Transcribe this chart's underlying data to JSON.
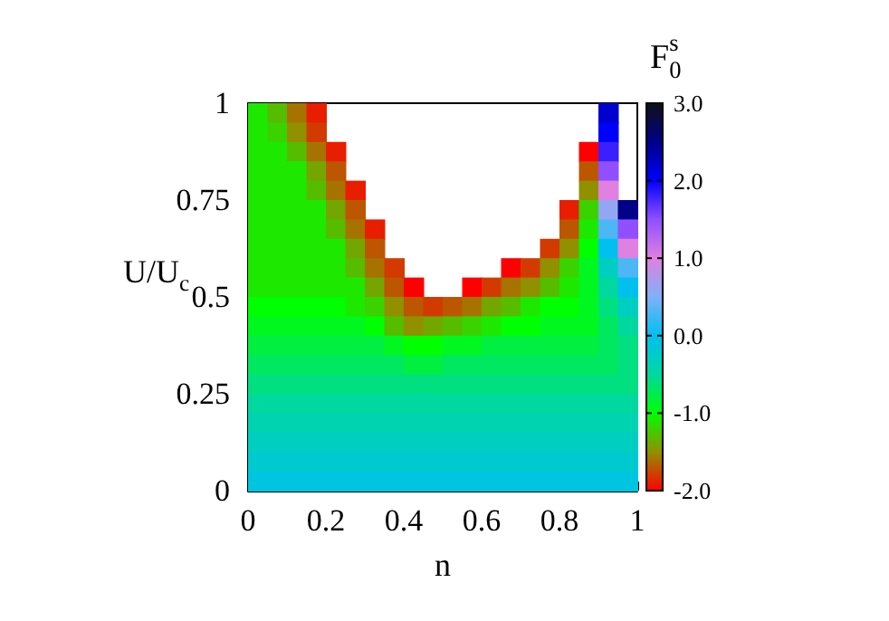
{
  "chart_data": {
    "type": "heatmap",
    "xlabel": "n",
    "ylabel": "U/U$_{c}$",
    "clabel": "F$^{s}$$_{0}$",
    "xlim": [
      0,
      1
    ],
    "ylim": [
      0,
      1
    ],
    "xticks": [
      0,
      0.2,
      0.4,
      0.6,
      0.8,
      1
    ],
    "yticks": [
      0,
      0.25,
      0.5,
      0.75,
      1
    ],
    "clim": [
      -2,
      3
    ],
    "cticks": [
      {
        "value": 3,
        "label": "3.0"
      },
      {
        "value": 2,
        "label": "2.0"
      },
      {
        "value": 1,
        "label": "1.0"
      },
      {
        "value": 0,
        "label": "0.0"
      },
      {
        "value": -1,
        "label": "-1.0"
      },
      {
        "value": -2,
        "label": "-2.0"
      }
    ],
    "cells": [
      [
        -1.1,
        -1.3,
        -1.6,
        -1.9,
        null,
        null,
        null,
        null,
        null,
        null,
        null,
        null,
        null,
        null,
        null,
        null,
        null,
        null,
        2.2,
        null
      ],
      [
        -1.1,
        -1.2,
        -1.5,
        -1.8,
        null,
        null,
        null,
        null,
        null,
        null,
        null,
        null,
        null,
        null,
        null,
        null,
        null,
        null,
        2.0,
        null
      ],
      [
        -1.1,
        -1.1,
        -1.3,
        -1.6,
        -1.9,
        null,
        null,
        null,
        null,
        null,
        null,
        null,
        null,
        null,
        null,
        null,
        null,
        -2.0,
        1.8,
        null
      ],
      [
        -1.1,
        -1.1,
        -1.1,
        -1.4,
        -1.7,
        null,
        null,
        null,
        null,
        null,
        null,
        null,
        null,
        null,
        null,
        null,
        null,
        -1.7,
        1.5,
        null
      ],
      [
        -1.1,
        -1.1,
        -1.1,
        -1.3,
        -1.6,
        -1.9,
        null,
        null,
        null,
        null,
        null,
        null,
        null,
        null,
        null,
        null,
        null,
        -1.5,
        1.0,
        null
      ],
      [
        -1.1,
        -1.1,
        -1.1,
        -1.1,
        -1.4,
        -1.7,
        null,
        null,
        null,
        null,
        null,
        null,
        null,
        null,
        null,
        null,
        -1.9,
        -1.2,
        0.6,
        2.5
      ],
      [
        -1.1,
        -1.1,
        -1.1,
        -1.1,
        -1.3,
        -1.6,
        -1.9,
        null,
        null,
        null,
        null,
        null,
        null,
        null,
        null,
        null,
        -1.7,
        -1.1,
        0.3,
        1.5
      ],
      [
        -1.1,
        -1.1,
        -1.1,
        -1.1,
        -1.1,
        -1.4,
        -1.7,
        null,
        null,
        null,
        null,
        null,
        null,
        null,
        null,
        -1.8,
        -1.5,
        -1.0,
        0.0,
        1.0
      ],
      [
        -1.1,
        -1.1,
        -1.1,
        -1.1,
        -1.1,
        -1.3,
        -1.6,
        -1.8,
        null,
        null,
        null,
        null,
        null,
        -2.0,
        -1.8,
        -1.5,
        -1.2,
        -0.9,
        -0.3,
        0.3
      ],
      [
        -1.1,
        -1.1,
        -1.1,
        -1.1,
        -1.1,
        -1.1,
        -1.4,
        -1.7,
        -2.0,
        null,
        null,
        -2.0,
        -1.8,
        -1.6,
        -1.5,
        -1.3,
        -1.1,
        -0.9,
        -0.5,
        0.0
      ],
      [
        -1.0,
        -1.0,
        -1.0,
        -1.0,
        -1.0,
        -1.1,
        -1.2,
        -1.5,
        -1.7,
        -1.8,
        -1.7,
        -1.6,
        -1.4,
        -1.3,
        -1.1,
        -1.0,
        -1.0,
        -0.9,
        -0.6,
        -0.3
      ],
      [
        -0.9,
        -0.9,
        -0.9,
        -0.9,
        -0.9,
        -0.9,
        -1.0,
        -1.3,
        -1.5,
        -1.4,
        -1.3,
        -1.2,
        -1.1,
        -1.0,
        -1.0,
        -0.9,
        -0.9,
        -0.9,
        -0.7,
        -0.5
      ],
      [
        -0.8,
        -0.8,
        -0.8,
        -0.8,
        -0.8,
        -0.8,
        -0.8,
        -0.9,
        -1.0,
        -1.0,
        -0.9,
        -0.9,
        -0.8,
        -0.8,
        -0.8,
        -0.8,
        -0.8,
        -0.8,
        -0.7,
        -0.6
      ],
      [
        -0.7,
        -0.7,
        -0.7,
        -0.7,
        -0.7,
        -0.7,
        -0.7,
        -0.7,
        -0.8,
        -0.8,
        -0.7,
        -0.7,
        -0.7,
        -0.7,
        -0.7,
        -0.7,
        -0.7,
        -0.7,
        -0.7,
        -0.6
      ],
      [
        -0.6,
        -0.6,
        -0.6,
        -0.6,
        -0.6,
        -0.6,
        -0.6,
        -0.6,
        -0.6,
        -0.6,
        -0.6,
        -0.6,
        -0.6,
        -0.6,
        -0.6,
        -0.6,
        -0.6,
        -0.6,
        -0.6,
        -0.6
      ],
      [
        -0.5,
        -0.5,
        -0.5,
        -0.5,
        -0.5,
        -0.5,
        -0.5,
        -0.5,
        -0.5,
        -0.5,
        -0.5,
        -0.5,
        -0.5,
        -0.5,
        -0.5,
        -0.5,
        -0.5,
        -0.5,
        -0.5,
        -0.5
      ],
      [
        -0.4,
        -0.4,
        -0.4,
        -0.4,
        -0.4,
        -0.4,
        -0.4,
        -0.4,
        -0.4,
        -0.4,
        -0.4,
        -0.4,
        -0.4,
        -0.4,
        -0.4,
        -0.4,
        -0.4,
        -0.4,
        -0.4,
        -0.4
      ],
      [
        -0.3,
        -0.3,
        -0.3,
        -0.3,
        -0.3,
        -0.3,
        -0.3,
        -0.3,
        -0.3,
        -0.3,
        -0.3,
        -0.3,
        -0.3,
        -0.3,
        -0.3,
        -0.3,
        -0.3,
        -0.3,
        -0.3,
        -0.3
      ],
      [
        -0.2,
        -0.2,
        -0.2,
        -0.2,
        -0.2,
        -0.2,
        -0.2,
        -0.2,
        -0.2,
        -0.2,
        -0.2,
        -0.2,
        -0.2,
        -0.2,
        -0.2,
        -0.2,
        -0.2,
        -0.2,
        -0.2,
        -0.2
      ],
      [
        -0.1,
        -0.1,
        -0.1,
        -0.1,
        -0.1,
        -0.1,
        -0.1,
        -0.1,
        -0.1,
        -0.1,
        -0.1,
        -0.1,
        -0.1,
        -0.1,
        -0.1,
        -0.1,
        -0.1,
        -0.1,
        -0.1,
        -0.1
      ]
    ]
  }
}
